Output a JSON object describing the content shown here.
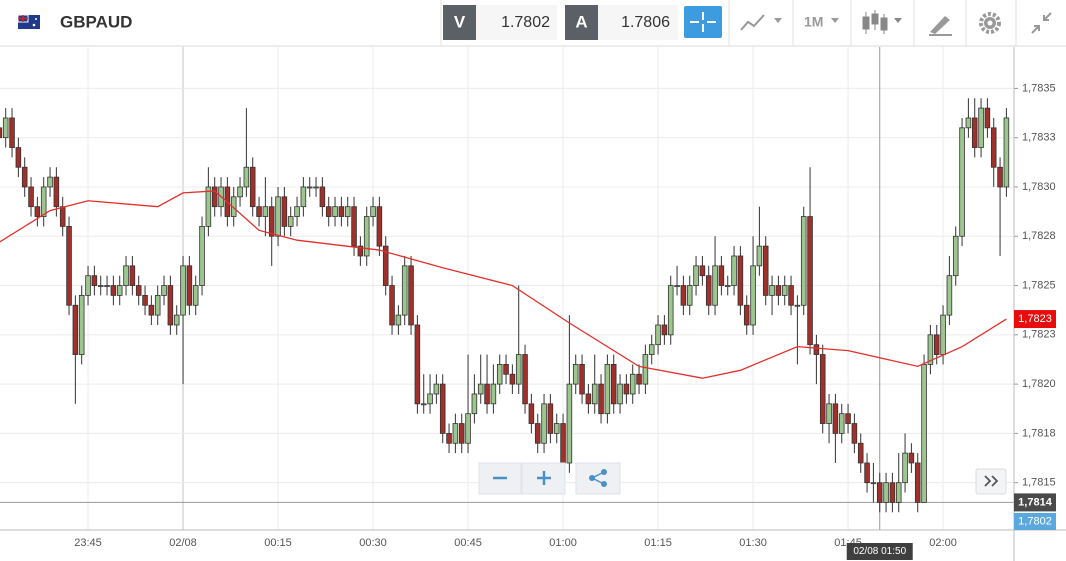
{
  "toolbar": {
    "symbol": "GBPAUD",
    "bid_tag": "V",
    "bid": "1.7802",
    "ask_tag": "A",
    "ask": "1.7806",
    "timeframe": "1M"
  },
  "chart_data": {
    "type": "candlestick",
    "x": [
      1,
      2,
      3,
      4,
      5,
      6,
      7,
      8,
      9,
      10,
      11,
      12,
      13,
      14,
      15,
      16,
      17,
      18,
      19,
      20,
      21,
      22,
      23,
      24,
      25,
      26,
      27,
      28,
      29,
      30,
      31,
      32,
      33,
      34,
      35,
      36,
      37,
      38,
      39,
      40,
      41,
      42,
      43,
      44,
      45,
      46,
      47,
      48,
      49,
      50,
      51,
      52,
      53,
      54,
      55,
      56,
      57,
      58,
      59,
      60,
      61,
      62,
      63,
      64,
      65,
      66,
      67,
      68,
      69,
      70,
      71,
      72,
      73,
      74,
      75,
      76,
      77,
      78,
      79,
      80,
      81,
      82,
      83,
      84,
      85,
      86,
      87,
      88,
      89,
      90,
      91,
      92,
      93,
      94,
      95,
      96,
      97,
      98,
      99,
      100,
      101,
      102,
      103,
      104,
      105,
      106,
      107,
      108,
      109,
      110,
      111,
      112,
      113,
      114,
      115,
      116,
      117,
      118,
      119,
      120,
      121,
      122,
      123,
      124,
      125,
      126,
      127,
      128,
      129,
      130,
      131,
      132,
      133,
      134,
      135,
      136,
      137,
      138,
      139,
      140,
      141,
      142,
      143,
      144,
      145,
      146,
      147,
      148,
      149,
      150,
      151,
      152,
      153,
      154,
      155,
      156,
      157,
      158,
      159,
      160
    ],
    "open": [
      1.7833,
      1.78325,
      1.78335,
      1.7832,
      1.7831,
      1.783,
      1.7829,
      1.78285,
      1.783,
      1.78305,
      1.7829,
      1.7828,
      1.7824,
      1.78215,
      1.78245,
      1.78255,
      1.7825,
      1.7825,
      1.7825,
      1.78245,
      1.7825,
      1.7826,
      1.7825,
      1.78245,
      1.7824,
      1.78235,
      1.78245,
      1.7825,
      1.7823,
      1.78235,
      1.7826,
      1.7824,
      1.7825,
      1.7828,
      1.783,
      1.7829,
      1.783,
      1.78285,
      1.78295,
      1.783,
      1.7831,
      1.7829,
      1.78285,
      1.7829,
      1.78275,
      1.78295,
      1.7828,
      1.78285,
      1.7829,
      1.783,
      1.783,
      1.783,
      1.7829,
      1.78285,
      1.7829,
      1.78285,
      1.7829,
      1.7827,
      1.78265,
      1.78285,
      1.7829,
      1.7827,
      1.7825,
      1.7823,
      1.78235,
      1.7826,
      1.7823,
      1.7819,
      1.7819,
      1.78195,
      1.782,
      1.78175,
      1.7817,
      1.7818,
      1.7817,
      1.78185,
      1.78195,
      1.782,
      1.7819,
      1.782,
      1.7821,
      1.78205,
      1.782,
      1.78215,
      1.7819,
      1.7818,
      1.7817,
      1.7819,
      1.78175,
      1.7818,
      1.7816,
      1.782,
      1.7821,
      1.78195,
      1.7819,
      1.782,
      1.78185,
      1.7821,
      1.7819,
      1.782,
      1.78195,
      1.78205,
      1.782,
      1.78215,
      1.7822,
      1.7823,
      1.78225,
      1.7825,
      1.7825,
      1.7824,
      1.7825,
      1.7826,
      1.78255,
      1.7824,
      1.7826,
      1.7825,
      1.7825,
      1.78265,
      1.7824,
      1.7823,
      1.7826,
      1.7827,
      1.78245,
      1.7825,
      1.78245,
      1.7825,
      1.7824,
      1.7824,
      1.78285,
      1.7822,
      1.78215,
      1.7818,
      1.7819,
      1.78175,
      1.78185,
      1.7818,
      1.7817,
      1.7816,
      1.7815,
      1.7815,
      1.7814,
      1.7815,
      1.7814,
      1.7815,
      1.78165,
      1.7816,
      1.7814,
      1.7821,
      1.78225,
      1.78215,
      1.78235,
      1.78255,
      1.78275,
      1.7833,
      1.78335,
      1.7832,
      1.7834,
      1.7833,
      1.7831,
      1.783
    ],
    "high": [
      1.78335,
      1.7834,
      1.7834,
      1.78325,
      1.78315,
      1.78305,
      1.78295,
      1.78305,
      1.7831,
      1.7831,
      1.78295,
      1.78285,
      1.78245,
      1.7825,
      1.7826,
      1.7826,
      1.78255,
      1.78255,
      1.78255,
      1.78255,
      1.78265,
      1.78265,
      1.78255,
      1.7825,
      1.78245,
      1.7825,
      1.78255,
      1.78255,
      1.7824,
      1.78265,
      1.78265,
      1.78255,
      1.78285,
      1.7831,
      1.78305,
      1.78305,
      1.78305,
      1.783,
      1.78305,
      1.7834,
      1.78315,
      1.78295,
      1.78305,
      1.78295,
      1.783,
      1.783,
      1.7829,
      1.78295,
      1.78305,
      1.78305,
      1.78305,
      1.78305,
      1.78295,
      1.78295,
      1.78295,
      1.78295,
      1.78295,
      1.78275,
      1.7829,
      1.78295,
      1.78295,
      1.78275,
      1.78255,
      1.7824,
      1.78265,
      1.78265,
      1.78235,
      1.78205,
      1.78205,
      1.78205,
      1.78205,
      1.7818,
      1.78185,
      1.78185,
      1.78215,
      1.78205,
      1.78215,
      1.78215,
      1.7821,
      1.78215,
      1.78215,
      1.7821,
      1.7825,
      1.7822,
      1.78195,
      1.78185,
      1.78195,
      1.78195,
      1.78185,
      1.78185,
      1.78235,
      1.78215,
      1.78215,
      1.782,
      1.78215,
      1.78205,
      1.78215,
      1.78215,
      1.78205,
      1.78205,
      1.7821,
      1.7821,
      1.7822,
      1.78225,
      1.78235,
      1.78235,
      1.78255,
      1.7826,
      1.78255,
      1.78255,
      1.78265,
      1.78265,
      1.7826,
      1.78275,
      1.78265,
      1.78255,
      1.7827,
      1.7827,
      1.78245,
      1.78275,
      1.7829,
      1.78275,
      1.78255,
      1.78255,
      1.78255,
      1.78255,
      1.78245,
      1.7829,
      1.7831,
      1.78225,
      1.7822,
      1.78195,
      1.78195,
      1.7819,
      1.7819,
      1.78185,
      1.78175,
      1.78165,
      1.7816,
      1.78155,
      1.78155,
      1.78155,
      1.78165,
      1.78175,
      1.7817,
      1.78165,
      1.78215,
      1.7823,
      1.7823,
      1.7824,
      1.78265,
      1.7828,
      1.78335,
      1.78345,
      1.78345,
      1.78345,
      1.78345,
      1.78335,
      1.78315,
      1.7834
    ],
    "low": [
      1.7832,
      1.7832,
      1.78315,
      1.78305,
      1.78295,
      1.78285,
      1.7828,
      1.7828,
      1.78295,
      1.78285,
      1.78275,
      1.78235,
      1.7819,
      1.7821,
      1.7824,
      1.78245,
      1.78245,
      1.78245,
      1.7824,
      1.7824,
      1.78245,
      1.78245,
      1.7824,
      1.78235,
      1.7823,
      1.7823,
      1.7824,
      1.78225,
      1.78225,
      1.782,
      1.78235,
      1.78235,
      1.78245,
      1.78275,
      1.78285,
      1.78285,
      1.7828,
      1.7828,
      1.7829,
      1.78295,
      1.78285,
      1.7828,
      1.78275,
      1.7826,
      1.7827,
      1.78275,
      1.78275,
      1.7828,
      1.78285,
      1.78295,
      1.78295,
      1.78285,
      1.7828,
      1.7828,
      1.7828,
      1.7828,
      1.78265,
      1.7826,
      1.7826,
      1.7828,
      1.78265,
      1.78245,
      1.78225,
      1.78225,
      1.7823,
      1.78225,
      1.78185,
      1.78185,
      1.78185,
      1.7819,
      1.7817,
      1.78165,
      1.78165,
      1.78165,
      1.78165,
      1.7818,
      1.7819,
      1.78185,
      1.78185,
      1.78195,
      1.782,
      1.78195,
      1.78195,
      1.78185,
      1.78175,
      1.78165,
      1.78165,
      1.7817,
      1.7817,
      1.7816,
      1.78155,
      1.78195,
      1.7819,
      1.78185,
      1.78185,
      1.7818,
      1.7818,
      1.78185,
      1.78185,
      1.7819,
      1.7819,
      1.78195,
      1.78195,
      1.7821,
      1.78215,
      1.7822,
      1.7822,
      1.78245,
      1.78235,
      1.78235,
      1.78245,
      1.7825,
      1.78235,
      1.78235,
      1.78245,
      1.78245,
      1.78245,
      1.78235,
      1.78225,
      1.78225,
      1.78255,
      1.7824,
      1.78235,
      1.7824,
      1.7824,
      1.78235,
      1.7821,
      1.78235,
      1.78215,
      1.782,
      1.78175,
      1.7817,
      1.7816,
      1.7817,
      1.78175,
      1.78165,
      1.78155,
      1.78145,
      1.7814,
      1.78135,
      1.78135,
      1.78135,
      1.78135,
      1.78145,
      1.78155,
      1.78135,
      1.7814,
      1.78205,
      1.7821,
      1.7821,
      1.7823,
      1.7825,
      1.7827,
      1.78325,
      1.78315,
      1.78315,
      1.78325,
      1.783,
      1.78265,
      1.78295
    ],
    "close": [
      1.78325,
      1.78335,
      1.7832,
      1.7831,
      1.783,
      1.7829,
      1.78285,
      1.783,
      1.78305,
      1.7829,
      1.7828,
      1.7824,
      1.78215,
      1.78245,
      1.78255,
      1.7825,
      1.7825,
      1.7825,
      1.78245,
      1.7825,
      1.7826,
      1.7825,
      1.78245,
      1.7824,
      1.78235,
      1.78245,
      1.7825,
      1.7823,
      1.78235,
      1.7826,
      1.7824,
      1.7825,
      1.7828,
      1.783,
      1.7829,
      1.783,
      1.78285,
      1.78295,
      1.783,
      1.7831,
      1.7829,
      1.78285,
      1.7829,
      1.78275,
      1.78295,
      1.7828,
      1.78285,
      1.7829,
      1.783,
      1.783,
      1.783,
      1.7829,
      1.78285,
      1.7829,
      1.78285,
      1.7829,
      1.7827,
      1.78265,
      1.78285,
      1.7829,
      1.7827,
      1.7825,
      1.7823,
      1.78235,
      1.7826,
      1.7823,
      1.7819,
      1.7819,
      1.78195,
      1.782,
      1.78175,
      1.7817,
      1.7818,
      1.7817,
      1.78185,
      1.78195,
      1.782,
      1.7819,
      1.782,
      1.7821,
      1.78205,
      1.782,
      1.78215,
      1.7819,
      1.7818,
      1.7817,
      1.7819,
      1.78175,
      1.7818,
      1.7816,
      1.782,
      1.7821,
      1.78195,
      1.7819,
      1.782,
      1.78185,
      1.7821,
      1.7819,
      1.782,
      1.78195,
      1.78205,
      1.782,
      1.78215,
      1.7822,
      1.7823,
      1.78225,
      1.7825,
      1.7825,
      1.7824,
      1.7825,
      1.7826,
      1.78255,
      1.7824,
      1.7826,
      1.7825,
      1.7825,
      1.78265,
      1.7824,
      1.7823,
      1.7826,
      1.7827,
      1.78245,
      1.7825,
      1.78245,
      1.7825,
      1.7824,
      1.7824,
      1.78285,
      1.7822,
      1.78215,
      1.7818,
      1.7819,
      1.78175,
      1.78185,
      1.7818,
      1.7817,
      1.7816,
      1.7815,
      1.7815,
      1.7814,
      1.7815,
      1.7814,
      1.7815,
      1.78165,
      1.7816,
      1.7814,
      1.7821,
      1.78225,
      1.78215,
      1.78235,
      1.78255,
      1.78275,
      1.7833,
      1.78335,
      1.7832,
      1.7834,
      1.7833,
      1.7831,
      1.783,
      1.78335
    ],
    "up_color": "#9cc68e",
    "down_color": "#a0302a",
    "xlim": [
      1.1,
      161.2
    ],
    "xticks": [
      {
        "value": 15,
        "label": "23:45"
      },
      {
        "value": 30,
        "label": "02/08"
      },
      {
        "value": 45,
        "label": "00:15"
      },
      {
        "value": 60,
        "label": "00:30"
      },
      {
        "value": 75,
        "label": "00:45"
      },
      {
        "value": 90,
        "label": "01:00"
      },
      {
        "value": 105,
        "label": "01:15"
      },
      {
        "value": 120,
        "label": "01:30"
      },
      {
        "value": 135,
        "label": "01:45"
      },
      {
        "value": 150,
        "label": "02:00"
      }
    ],
    "ylim": [
      1.78126,
      1.78371
    ],
    "yticks": [
      {
        "value": 1.7835,
        "label": "1,7835"
      },
      {
        "value": 1.78325,
        "label": "1,7833"
      },
      {
        "value": 1.783,
        "label": "1,7830"
      },
      {
        "value": 1.78275,
        "label": "1,7828"
      },
      {
        "value": 1.7825,
        "label": "1,7825"
      },
      {
        "value": 1.78225,
        "label": "1,7823"
      },
      {
        "value": 1.782,
        "label": "1,7820"
      },
      {
        "value": 1.78175,
        "label": "1,7818"
      },
      {
        "value": 1.7815,
        "label": "1,7815"
      }
    ],
    "grid": true,
    "moving_average": {
      "x": [
        1,
        9,
        15,
        26,
        30,
        35,
        42,
        48,
        61,
        71,
        82,
        91,
        102,
        112,
        118,
        127,
        135,
        146,
        153,
        160
      ],
      "values": [
        1.78272,
        1.78288,
        1.78293,
        1.7829,
        1.78297,
        1.78298,
        1.78278,
        1.78273,
        1.78268,
        1.78259,
        1.7825,
        1.78231,
        1.78209,
        1.78203,
        1.78207,
        1.78219,
        1.78217,
        1.78209,
        1.78219,
        1.78233
      ],
      "color": "#e3302c",
      "last_label": "1,7823"
    },
    "crosshair": {
      "x": 140,
      "x_label": "02/08 01:50",
      "y": 1.7814,
      "y_label": "1,7814"
    },
    "bid_label": "1,7802"
  }
}
